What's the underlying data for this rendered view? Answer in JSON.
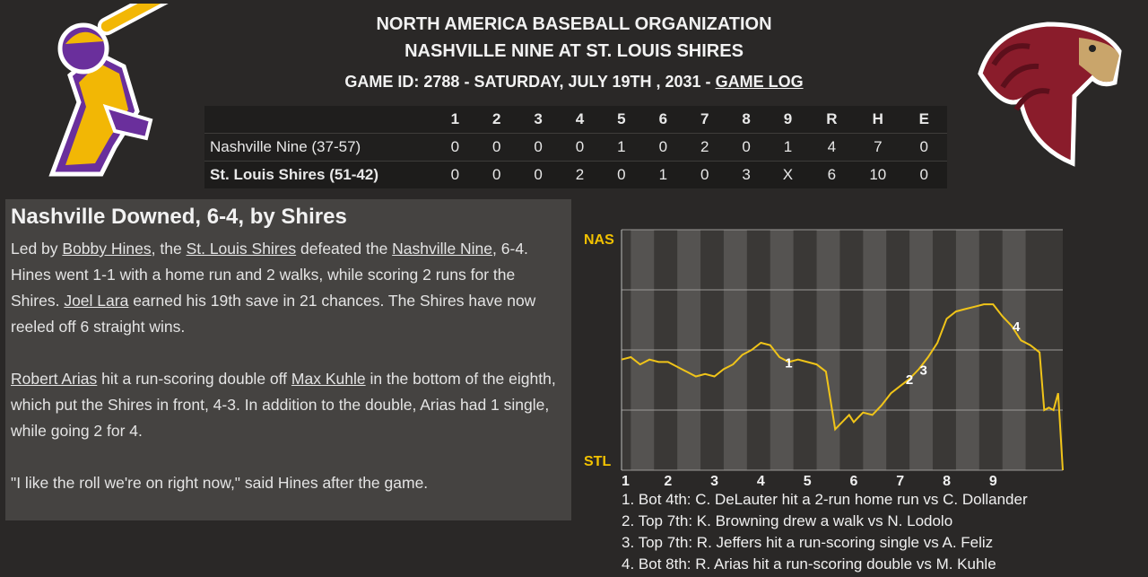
{
  "header": {
    "org": "NORTH AMERICA BASEBALL ORGANIZATION",
    "matchup": "NASHVILLE NINE AT ST. LOUIS SHIRES",
    "game_info": "GAME ID: 2788 - SATURDAY, JULY 19TH , 2031 -",
    "game_log_link": "GAME LOG"
  },
  "logos": {
    "away": "batter-mascot-logo",
    "home": "horse-head-logo"
  },
  "colors": {
    "away_primary": "#6a2f9c",
    "away_secondary": "#f2b705",
    "home_primary": "#8a1c2b",
    "home_secondary": "#c9a56b",
    "chart_line": "#f0c419",
    "chart_label": "#f2c200"
  },
  "linescore": {
    "headers": [
      "1",
      "2",
      "3",
      "4",
      "5",
      "6",
      "7",
      "8",
      "9",
      "R",
      "H",
      "E"
    ],
    "rows": [
      {
        "team": "Nashville Nine (37-57)",
        "cells": [
          "0",
          "0",
          "0",
          "0",
          "1",
          "0",
          "2",
          "0",
          "1",
          "4",
          "7",
          "0"
        ]
      },
      {
        "team": "St. Louis Shires (51-42)",
        "cells": [
          "0",
          "0",
          "0",
          "2",
          "0",
          "1",
          "0",
          "3",
          "X",
          "6",
          "10",
          "0"
        ]
      }
    ]
  },
  "story": {
    "headline": "Nashville Downed, 6-4, by Shires",
    "p1": [
      "Led by ",
      "Bobby Hines",
      ", the ",
      "St. Louis Shires",
      " defeated the ",
      "Nashville Nine",
      ", 6-4. Hines went 1-1 with a home run and 2 walks, while scoring 2 runs for the Shires. ",
      "Joel Lara",
      " earned his 19th save in 21 chances. The Shires have now reeled off 6 straight wins."
    ],
    "p2": [
      "Robert Arias",
      " hit a run-scoring double off ",
      "Max Kuhle",
      " in the bottom of the eighth, which put the Shires in front, 4-3. In addition to the double, Arias had 1 single, while going 2 for 4."
    ],
    "p3": "\"I like the roll we're on right now,\" said Hines after the game."
  },
  "chart_data": {
    "type": "line",
    "ylabel_top": "NAS",
    "ylabel_bottom": "STL",
    "ylim": [
      0,
      1
    ],
    "xlim": [
      0,
      9.5
    ],
    "x_tick_labels": [
      "1",
      "2",
      "3",
      "4",
      "5",
      "6",
      "7",
      "8",
      "9"
    ],
    "grid": true,
    "x": [
      0.0,
      0.2,
      0.4,
      0.6,
      0.8,
      1.0,
      1.2,
      1.4,
      1.6,
      1.8,
      2.0,
      2.2,
      2.4,
      2.6,
      2.8,
      3.0,
      3.2,
      3.4,
      3.6,
      3.8,
      4.0,
      4.2,
      4.4,
      4.6,
      4.8,
      4.9,
      5.0,
      5.1,
      5.2,
      5.4,
      5.6,
      5.8,
      6.0,
      6.2,
      6.4,
      6.6,
      6.8,
      7.0,
      7.2,
      7.4,
      7.6,
      7.8,
      8.0,
      8.2,
      8.4,
      8.6,
      8.8,
      9.0,
      9.1,
      9.2,
      9.3,
      9.4,
      9.5
    ],
    "y": [
      0.46,
      0.47,
      0.44,
      0.46,
      0.45,
      0.45,
      0.43,
      0.41,
      0.39,
      0.4,
      0.39,
      0.42,
      0.44,
      0.48,
      0.5,
      0.53,
      0.52,
      0.47,
      0.45,
      0.46,
      0.45,
      0.44,
      0.41,
      0.17,
      0.21,
      0.23,
      0.2,
      0.22,
      0.24,
      0.23,
      0.27,
      0.32,
      0.35,
      0.38,
      0.42,
      0.47,
      0.53,
      0.63,
      0.66,
      0.67,
      0.68,
      0.69,
      0.69,
      0.64,
      0.6,
      0.54,
      0.52,
      0.49,
      0.25,
      0.26,
      0.25,
      0.32,
      0.0
    ],
    "markers": [
      {
        "label": "1",
        "x": 3.6
      },
      {
        "label": "2",
        "x": 6.2
      },
      {
        "label": "3",
        "x": 6.5
      },
      {
        "label": "4",
        "x": 8.5
      }
    ]
  },
  "events": [
    "1. Bot 4th: C. DeLauter hit a 2-run home run vs C. Dollander",
    "2. Top 7th: K. Browning drew a walk vs N. Lodolo",
    "3. Top 7th: R. Jeffers hit a run-scoring single vs A. Feliz",
    "4. Bot 8th: R. Arias hit a run-scoring double vs M. Kuhle"
  ]
}
